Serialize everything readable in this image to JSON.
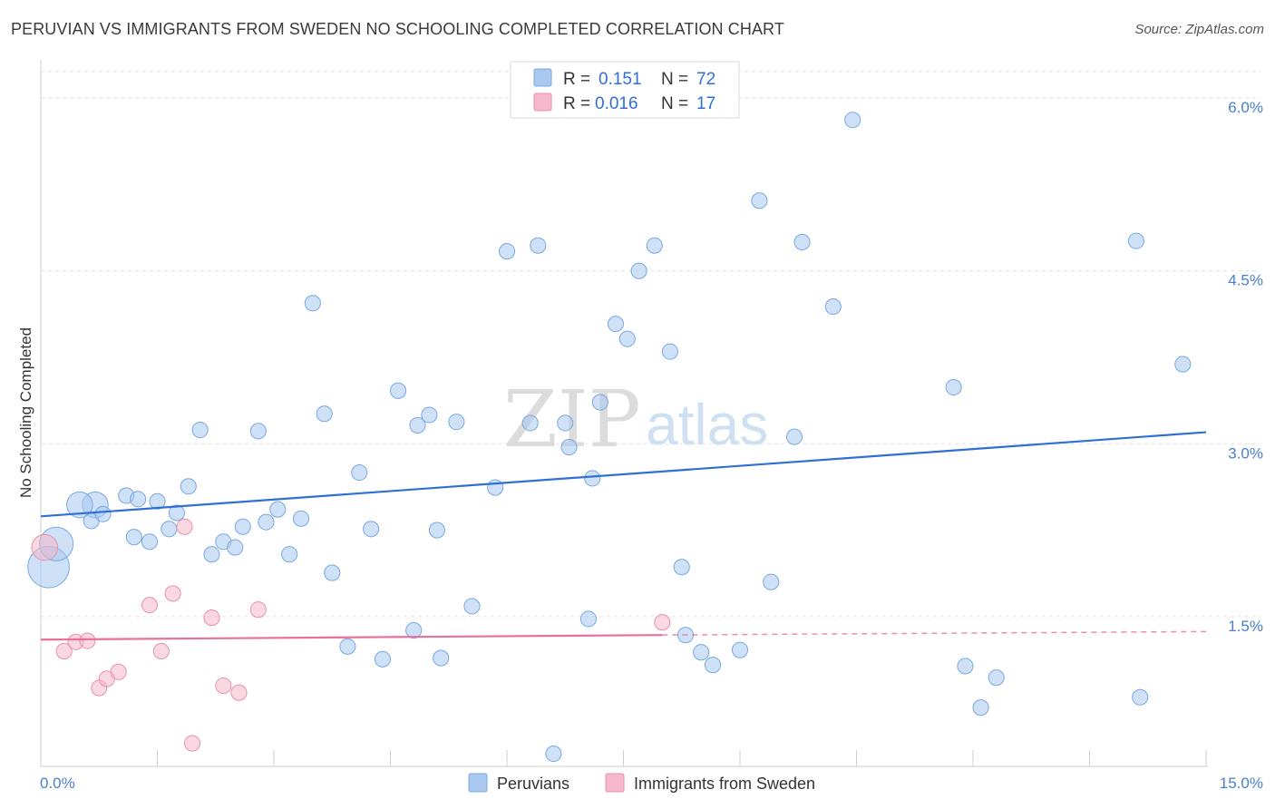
{
  "header": {
    "title": "PERUVIAN VS IMMIGRANTS FROM SWEDEN NO SCHOOLING COMPLETED CORRELATION CHART",
    "source": "Source: ZipAtlas.com"
  },
  "watermark": {
    "zip": "ZIP",
    "atlas": "atlas"
  },
  "legend": {
    "r_label": "R =",
    "n_label": "N =",
    "entries": [
      {
        "r": "0.151",
        "n": "72",
        "color": "#a8c8f0"
      },
      {
        "r": "0.016",
        "n": "17",
        "color": "#f5b8cb"
      }
    ]
  },
  "bottom_legend": [
    "Peruvians",
    "Immigrants from Sweden"
  ],
  "chart_data": {
    "type": "scatter",
    "ylabel": "No Schooling Completed",
    "xlim": [
      0,
      15
    ],
    "ylim": [
      0.2,
      6.3
    ],
    "x_tick_labels": [
      {
        "value": 0,
        "label": "0.0%"
      },
      {
        "value": 15,
        "label": "15.0%"
      }
    ],
    "y_tick_labels": [
      {
        "value": 1.5,
        "label": "1.5%"
      },
      {
        "value": 3.0,
        "label": "3.0%"
      },
      {
        "value": 4.5,
        "label": "4.5%"
      },
      {
        "value": 6.0,
        "label": "6.0%"
      }
    ],
    "grid": "horizontal-dashed",
    "series": [
      {
        "name": "Peruvians",
        "color": "#a8c8f0",
        "stroke": "#7aa8e0",
        "trend": {
          "x": [
            0,
            15
          ],
          "y": [
            2.37,
            3.1
          ],
          "color": "#2f6fd6"
        },
        "points": [
          [
            0.1,
            1.93,
            1.6
          ],
          [
            0.2,
            2.13,
            1.3
          ],
          [
            0.7,
            2.47,
            1.0
          ],
          [
            0.5,
            2.47,
            1.0
          ],
          [
            0.65,
            2.33,
            0.6
          ],
          [
            0.8,
            2.39,
            0.6
          ],
          [
            1.1,
            2.55,
            0.6
          ],
          [
            1.2,
            2.19,
            0.6
          ],
          [
            1.25,
            2.52,
            0.6
          ],
          [
            1.4,
            2.15,
            0.6
          ],
          [
            1.5,
            2.5,
            0.6
          ],
          [
            1.65,
            2.26,
            0.6
          ],
          [
            1.75,
            2.4,
            0.6
          ],
          [
            1.9,
            2.63,
            0.6
          ],
          [
            2.05,
            3.12,
            0.6
          ],
          [
            2.2,
            2.04,
            0.6
          ],
          [
            2.35,
            2.15,
            0.6
          ],
          [
            2.5,
            2.1,
            0.6
          ],
          [
            2.6,
            2.28,
            0.6
          ],
          [
            2.8,
            3.11,
            0.6
          ],
          [
            2.9,
            2.32,
            0.6
          ],
          [
            3.05,
            2.43,
            0.6
          ],
          [
            3.2,
            2.04,
            0.6
          ],
          [
            3.35,
            2.35,
            0.6
          ],
          [
            3.5,
            4.22,
            0.6
          ],
          [
            3.65,
            3.26,
            0.6
          ],
          [
            3.75,
            1.88,
            0.6
          ],
          [
            3.95,
            1.24,
            0.6
          ],
          [
            4.1,
            2.75,
            0.6
          ],
          [
            4.25,
            2.26,
            0.6
          ],
          [
            4.4,
            1.13,
            0.6
          ],
          [
            4.6,
            3.46,
            0.6
          ],
          [
            4.8,
            1.38,
            0.6
          ],
          [
            4.85,
            3.16,
            0.6
          ],
          [
            5.0,
            3.25,
            0.6
          ],
          [
            5.1,
            2.25,
            0.6
          ],
          [
            5.15,
            1.14,
            0.6
          ],
          [
            5.35,
            3.19,
            0.6
          ],
          [
            5.55,
            1.59,
            0.6
          ],
          [
            5.85,
            2.62,
            0.6
          ],
          [
            6.0,
            4.67,
            0.6
          ],
          [
            6.3,
            3.18,
            0.6
          ],
          [
            6.4,
            4.72,
            0.6
          ],
          [
            6.6,
            0.31,
            0.6
          ],
          [
            6.8,
            2.97,
            0.6
          ],
          [
            7.05,
            1.48,
            0.6
          ],
          [
            7.1,
            2.7,
            0.6
          ],
          [
            7.2,
            3.36,
            0.6
          ],
          [
            7.4,
            4.04,
            0.6
          ],
          [
            7.55,
            3.91,
            0.6
          ],
          [
            7.7,
            4.5,
            0.6
          ],
          [
            7.9,
            4.72,
            0.6
          ],
          [
            8.1,
            3.8,
            0.6
          ],
          [
            8.25,
            1.93,
            0.6
          ],
          [
            8.3,
            1.34,
            0.6
          ],
          [
            8.5,
            1.19,
            0.6
          ],
          [
            8.65,
            1.08,
            0.6
          ],
          [
            9.0,
            1.21,
            0.6
          ],
          [
            9.25,
            5.11,
            0.6
          ],
          [
            9.4,
            1.8,
            0.6
          ],
          [
            9.7,
            3.06,
            0.6
          ],
          [
            9.8,
            4.75,
            0.6
          ],
          [
            10.2,
            4.19,
            0.6
          ],
          [
            10.45,
            5.81,
            0.6
          ],
          [
            11.75,
            3.49,
            0.6
          ],
          [
            11.9,
            1.07,
            0.6
          ],
          [
            12.1,
            0.71,
            0.6
          ],
          [
            12.3,
            0.97,
            0.6
          ],
          [
            14.1,
            4.76,
            0.6
          ],
          [
            14.15,
            0.8,
            0.6
          ],
          [
            14.7,
            3.69,
            0.6
          ],
          [
            6.75,
            3.18,
            0.6
          ]
        ]
      },
      {
        "name": "Immigrants from Sweden",
        "color": "#f5b8cb",
        "stroke": "#e890ae",
        "trend": {
          "x": [
            0,
            8.0
          ],
          "y": [
            1.3,
            1.34
          ],
          "dashed_to": 15,
          "dashed_y": 1.37,
          "color": "#e8709a"
        },
        "points": [
          [
            0.05,
            2.1,
            1.0
          ],
          [
            0.3,
            1.2,
            0.6
          ],
          [
            0.45,
            1.28,
            0.6
          ],
          [
            0.6,
            1.29,
            0.6
          ],
          [
            0.75,
            0.88,
            0.6
          ],
          [
            0.85,
            0.96,
            0.6
          ],
          [
            1.0,
            1.02,
            0.6
          ],
          [
            1.4,
            1.6,
            0.6
          ],
          [
            1.55,
            1.2,
            0.6
          ],
          [
            1.7,
            1.7,
            0.6
          ],
          [
            1.85,
            2.28,
            0.6
          ],
          [
            1.95,
            0.4,
            0.6
          ],
          [
            2.2,
            1.49,
            0.6
          ],
          [
            2.35,
            0.9,
            0.6
          ],
          [
            2.55,
            0.84,
            0.6
          ],
          [
            2.8,
            1.56,
            0.6
          ],
          [
            8.0,
            1.45,
            0.6
          ]
        ]
      }
    ]
  }
}
